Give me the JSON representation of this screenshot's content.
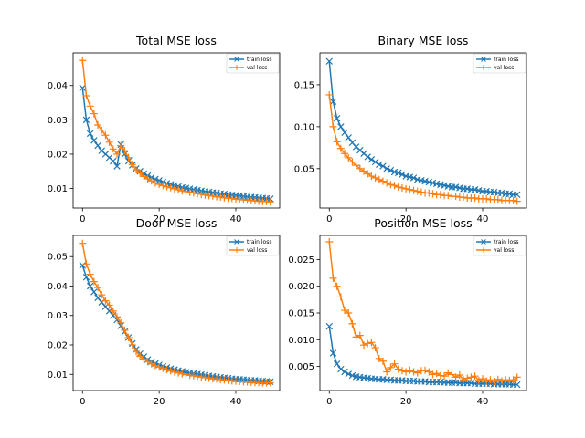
{
  "figure": {
    "background": "#ffffff"
  },
  "chart_data": [
    {
      "type": "line",
      "title": "Total MSE loss",
      "xlabel": "",
      "ylabel": "",
      "xlim": [
        -2.45,
        51.45
      ],
      "ylim": [
        0.0043,
        0.0495
      ],
      "xticks": [
        0,
        20,
        40
      ],
      "yticks": [
        0.01,
        0.02,
        0.03,
        0.04
      ],
      "legend": "top-right",
      "grid": false,
      "series": [
        {
          "name": "train loss",
          "color": "#1f77b4",
          "marker": "x",
          "x": [
            0,
            1,
            2,
            3,
            4,
            5,
            6,
            7,
            8,
            9,
            10,
            11,
            12,
            13,
            14,
            15,
            16,
            17,
            18,
            19,
            20,
            21,
            22,
            23,
            24,
            25,
            26,
            27,
            28,
            29,
            30,
            31,
            32,
            33,
            34,
            35,
            36,
            37,
            38,
            39,
            40,
            41,
            42,
            43,
            44,
            45,
            46,
            47,
            48,
            49
          ],
          "values": [
            0.0393,
            0.03,
            0.026,
            0.024,
            0.0225,
            0.021,
            0.02,
            0.019,
            0.018,
            0.0165,
            0.0228,
            0.02,
            0.018,
            0.0168,
            0.0158,
            0.015,
            0.0143,
            0.0137,
            0.0132,
            0.0127,
            0.0123,
            0.0119,
            0.0115,
            0.0112,
            0.0109,
            0.0106,
            0.0103,
            0.0101,
            0.0099,
            0.0097,
            0.0095,
            0.0093,
            0.0091,
            0.009,
            0.0088,
            0.0087,
            0.0085,
            0.0084,
            0.0082,
            0.0081,
            0.008,
            0.0079,
            0.0077,
            0.0076,
            0.0075,
            0.0074,
            0.0073,
            0.0072,
            0.0071,
            0.007
          ]
        },
        {
          "name": "val loss",
          "color": "#ff7f0e",
          "marker": "+",
          "x": [
            0,
            1,
            2,
            3,
            4,
            5,
            6,
            7,
            8,
            9,
            10,
            11,
            12,
            13,
            14,
            15,
            16,
            17,
            18,
            19,
            20,
            21,
            22,
            23,
            24,
            25,
            26,
            27,
            28,
            29,
            30,
            31,
            32,
            33,
            34,
            35,
            36,
            37,
            38,
            39,
            40,
            41,
            42,
            43,
            44,
            45,
            46,
            47,
            48,
            49
          ],
          "values": [
            0.0473,
            0.037,
            0.034,
            0.0318,
            0.0285,
            0.027,
            0.0255,
            0.0235,
            0.0215,
            0.02,
            0.0225,
            0.021,
            0.019,
            0.017,
            0.0155,
            0.0145,
            0.0135,
            0.0128,
            0.0122,
            0.0116,
            0.0112,
            0.0108,
            0.0105,
            0.0102,
            0.0099,
            0.0096,
            0.0093,
            0.0091,
            0.0089,
            0.0087,
            0.0085,
            0.0083,
            0.0081,
            0.0079,
            0.0078,
            0.0076,
            0.0075,
            0.0073,
            0.0072,
            0.0071,
            0.0069,
            0.0068,
            0.0067,
            0.0066,
            0.0065,
            0.0064,
            0.0063,
            0.0062,
            0.0062,
            0.0061
          ]
        }
      ]
    },
    {
      "type": "line",
      "title": "Binary MSE loss",
      "xlabel": "",
      "ylabel": "",
      "xlim": [
        -2.45,
        51.45
      ],
      "ylim": [
        0.003,
        0.188
      ],
      "xticks": [
        0,
        20,
        40
      ],
      "yticks": [
        0.05,
        0.1,
        0.15
      ],
      "legend": "top-right",
      "grid": false,
      "series": [
        {
          "name": "train loss",
          "color": "#1f77b4",
          "marker": "x",
          "x": [
            0,
            1,
            2,
            3,
            4,
            5,
            6,
            7,
            8,
            9,
            10,
            11,
            12,
            13,
            14,
            15,
            16,
            17,
            18,
            19,
            20,
            21,
            22,
            23,
            24,
            25,
            26,
            27,
            28,
            29,
            30,
            31,
            32,
            33,
            34,
            35,
            36,
            37,
            38,
            39,
            40,
            41,
            42,
            43,
            44,
            45,
            46,
            47,
            48,
            49
          ],
          "values": [
            0.178,
            0.13,
            0.11,
            0.1,
            0.093,
            0.087,
            0.081,
            0.076,
            0.072,
            0.068,
            0.064,
            0.061,
            0.058,
            0.055,
            0.053,
            0.05,
            0.048,
            0.046,
            0.045,
            0.043,
            0.041,
            0.04,
            0.039,
            0.037,
            0.036,
            0.035,
            0.034,
            0.033,
            0.032,
            0.031,
            0.03,
            0.029,
            0.028,
            0.028,
            0.027,
            0.026,
            0.026,
            0.025,
            0.025,
            0.024,
            0.023,
            0.023,
            0.022,
            0.022,
            0.021,
            0.021,
            0.02,
            0.02,
            0.019,
            0.019
          ]
        },
        {
          "name": "val loss",
          "color": "#ff7f0e",
          "marker": "+",
          "x": [
            0,
            1,
            2,
            3,
            4,
            5,
            6,
            7,
            8,
            9,
            10,
            11,
            12,
            13,
            14,
            15,
            16,
            17,
            18,
            19,
            20,
            21,
            22,
            23,
            24,
            25,
            26,
            27,
            28,
            29,
            30,
            31,
            32,
            33,
            34,
            35,
            36,
            37,
            38,
            39,
            40,
            41,
            42,
            43,
            44,
            45,
            46,
            47,
            48,
            49
          ],
          "values": [
            0.138,
            0.1,
            0.082,
            0.074,
            0.068,
            0.063,
            0.058,
            0.054,
            0.05,
            0.047,
            0.044,
            0.041,
            0.039,
            0.037,
            0.035,
            0.033,
            0.031,
            0.03,
            0.028,
            0.027,
            0.026,
            0.025,
            0.024,
            0.023,
            0.022,
            0.021,
            0.021,
            0.02,
            0.019,
            0.019,
            0.018,
            0.018,
            0.017,
            0.017,
            0.016,
            0.016,
            0.015,
            0.015,
            0.015,
            0.014,
            0.014,
            0.014,
            0.013,
            0.013,
            0.013,
            0.012,
            0.012,
            0.012,
            0.012,
            0.011
          ]
        }
      ]
    },
    {
      "type": "line",
      "title": "Door MSE loss",
      "xlabel": "",
      "ylabel": "",
      "xlim": [
        -2.45,
        51.45
      ],
      "ylim": [
        0.0045,
        0.0572
      ],
      "xticks": [
        0,
        20,
        40
      ],
      "yticks": [
        0.01,
        0.02,
        0.03,
        0.04,
        0.05
      ],
      "legend": "top-right",
      "grid": false,
      "series": [
        {
          "name": "train loss",
          "color": "#1f77b4",
          "marker": "x",
          "x": [
            0,
            1,
            2,
            3,
            4,
            5,
            6,
            7,
            8,
            9,
            10,
            11,
            12,
            13,
            14,
            15,
            16,
            17,
            18,
            19,
            20,
            21,
            22,
            23,
            24,
            25,
            26,
            27,
            28,
            29,
            30,
            31,
            32,
            33,
            34,
            35,
            36,
            37,
            38,
            39,
            40,
            41,
            42,
            43,
            44,
            45,
            46,
            47,
            48,
            49
          ],
          "values": [
            0.047,
            0.043,
            0.04,
            0.038,
            0.036,
            0.0345,
            0.033,
            0.0315,
            0.03,
            0.0285,
            0.0265,
            0.0245,
            0.0225,
            0.0205,
            0.0185,
            0.017,
            0.016,
            0.015,
            0.0143,
            0.0137,
            0.0132,
            0.0127,
            0.0123,
            0.0119,
            0.0116,
            0.0113,
            0.011,
            0.0107,
            0.0105,
            0.0103,
            0.0101,
            0.0099,
            0.0097,
            0.0095,
            0.0093,
            0.0091,
            0.009,
            0.0088,
            0.0087,
            0.0085,
            0.0084,
            0.0083,
            0.0082,
            0.0081,
            0.008,
            0.0079,
            0.0078,
            0.0077,
            0.0076,
            0.0075
          ]
        },
        {
          "name": "val loss",
          "color": "#ff7f0e",
          "marker": "+",
          "x": [
            0,
            1,
            2,
            3,
            4,
            5,
            6,
            7,
            8,
            9,
            10,
            11,
            12,
            13,
            14,
            15,
            16,
            17,
            18,
            19,
            20,
            21,
            22,
            23,
            24,
            25,
            26,
            27,
            28,
            29,
            30,
            31,
            32,
            33,
            34,
            35,
            36,
            37,
            38,
            39,
            40,
            41,
            42,
            43,
            44,
            45,
            46,
            47,
            48,
            49
          ],
          "values": [
            0.0545,
            0.0475,
            0.044,
            0.0415,
            0.0395,
            0.037,
            0.035,
            0.0335,
            0.0315,
            0.0295,
            0.0275,
            0.025,
            0.0225,
            0.02,
            0.0178,
            0.0162,
            0.0152,
            0.0143,
            0.0136,
            0.013,
            0.0125,
            0.012,
            0.0116,
            0.0112,
            0.0108,
            0.0105,
            0.0102,
            0.0099,
            0.0097,
            0.0095,
            0.0093,
            0.0091,
            0.0089,
            0.0087,
            0.0085,
            0.0084,
            0.0082,
            0.0081,
            0.008,
            0.0078,
            0.0077,
            0.0076,
            0.0075,
            0.0074,
            0.0073,
            0.0072,
            0.0072,
            0.0071,
            0.0071,
            0.0072
          ]
        }
      ]
    },
    {
      "type": "line",
      "title": "Position MSE loss",
      "xlabel": "",
      "ylabel": "",
      "xlim": [
        -2.45,
        51.45
      ],
      "ylim": [
        0.0005,
        0.0295
      ],
      "xticks": [
        0,
        20,
        40
      ],
      "yticks": [
        0.005,
        0.01,
        0.015,
        0.02,
        0.025
      ],
      "legend": "top-right",
      "grid": false,
      "series": [
        {
          "name": "train loss",
          "color": "#1f77b4",
          "marker": "x",
          "x": [
            0,
            1,
            2,
            3,
            4,
            5,
            6,
            7,
            8,
            9,
            10,
            11,
            12,
            13,
            14,
            15,
            16,
            17,
            18,
            19,
            20,
            21,
            22,
            23,
            24,
            25,
            26,
            27,
            28,
            29,
            30,
            31,
            32,
            33,
            34,
            35,
            36,
            37,
            38,
            39,
            40,
            41,
            42,
            43,
            44,
            45,
            46,
            47,
            48,
            49
          ],
          "values": [
            0.0125,
            0.0075,
            0.0055,
            0.0045,
            0.004,
            0.0036,
            0.0033,
            0.0031,
            0.003,
            0.0029,
            0.0028,
            0.0027,
            0.0027,
            0.0026,
            0.0026,
            0.0025,
            0.0025,
            0.0024,
            0.0024,
            0.0024,
            0.0023,
            0.0023,
            0.0023,
            0.0022,
            0.0022,
            0.0022,
            0.0021,
            0.0021,
            0.0021,
            0.0021,
            0.002,
            0.002,
            0.002,
            0.002,
            0.0019,
            0.0019,
            0.0019,
            0.0019,
            0.0018,
            0.0018,
            0.0018,
            0.0018,
            0.0018,
            0.0017,
            0.0017,
            0.0017,
            0.0017,
            0.0017,
            0.0016,
            0.0016
          ]
        },
        {
          "name": "val loss",
          "color": "#ff7f0e",
          "marker": "+",
          "x": [
            0,
            1,
            2,
            3,
            4,
            5,
            6,
            7,
            8,
            9,
            10,
            11,
            12,
            13,
            14,
            15,
            16,
            17,
            18,
            19,
            20,
            21,
            22,
            23,
            24,
            25,
            26,
            27,
            28,
            29,
            30,
            31,
            32,
            33,
            34,
            35,
            36,
            37,
            38,
            39,
            40,
            41,
            42,
            43,
            44,
            45,
            46,
            47,
            48,
            49
          ],
          "values": [
            0.0283,
            0.0215,
            0.02,
            0.018,
            0.0155,
            0.015,
            0.013,
            0.0105,
            0.0108,
            0.009,
            0.0093,
            0.0095,
            0.0085,
            0.0065,
            0.006,
            0.004,
            0.0048,
            0.0055,
            0.0045,
            0.0042,
            0.004,
            0.0043,
            0.004,
            0.0038,
            0.0042,
            0.0043,
            0.004,
            0.0035,
            0.0037,
            0.0033,
            0.0032,
            0.0038,
            0.0035,
            0.003,
            0.0034,
            0.0025,
            0.0028,
            0.003,
            0.0032,
            0.0024,
            0.0027,
            0.0023,
            0.0025,
            0.0022,
            0.0026,
            0.0023,
            0.0025,
            0.0024,
            0.0025,
            0.003
          ]
        }
      ]
    }
  ]
}
